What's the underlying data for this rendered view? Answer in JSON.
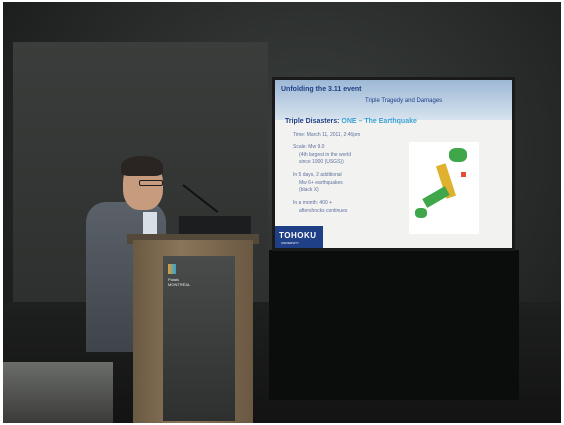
{
  "scene": {
    "description_kind": "conference-presentation-photo"
  },
  "slide": {
    "title": "Unfolding the 3.11 event",
    "subtitle": "Triple Tragedy and Damages",
    "bullet_prefix": "Triple Disasters:",
    "bullet_highlight": "ONE – The Earthquake",
    "lines": [
      "Time: March 11, 2011, 2:46pm",
      "Scale: Mw 9.0",
      "(4th largest in the world",
      "since 1900 (USGS))",
      "In 5 days, 2 additional",
      "Mw 6+ earthquakes",
      "(black X)",
      "In a month: 400 +",
      "aftershocks continues"
    ],
    "logo": "TOHOKU",
    "logo_sub": "UNIVERSITY"
  },
  "podium": {
    "label_line1": "Palais",
    "label_line2": "MONTRÉAL"
  },
  "colors": {
    "slide_blue": "#1f3f86",
    "slide_accent": "#3aa2d3",
    "map_green": "#3fa64a"
  }
}
